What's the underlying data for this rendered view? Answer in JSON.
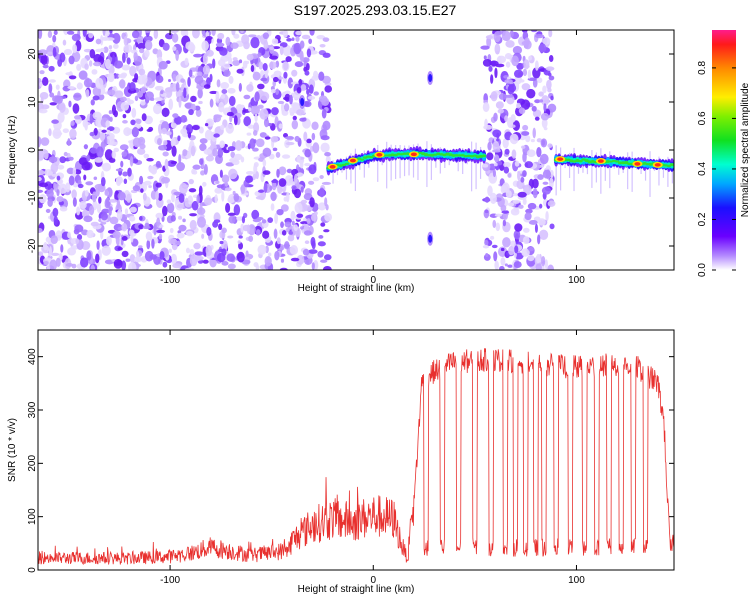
{
  "title": "S197.2025.293.03.15.E27",
  "chart_data": [
    {
      "type": "heatmap",
      "xlabel": "Height of straight line (km)",
      "ylabel": "Frequency (Hz)",
      "xlim": [
        -165,
        148
      ],
      "ylim": [
        -25,
        25
      ],
      "xticks": [
        -100,
        0,
        100
      ],
      "yticks": [
        20,
        10,
        0,
        -10,
        -20
      ],
      "colorbar": {
        "label": "Normalized spectral amplitude",
        "range": [
          0,
          0.95
        ],
        "ticks": [
          "0.0",
          "0.2",
          "0.4",
          "0.6",
          "0.8"
        ]
      },
      "noise_regions_km": [
        [
          -165,
          -28
        ],
        [
          -26,
          -22
        ],
        [
          55,
          88
        ]
      ],
      "signal_track": {
        "segments": [
          {
            "x": [
              -22,
              0,
              20,
              55
            ],
            "freq_hz": [
              -3.8,
              -1.2,
              -0.8,
              -1.3
            ]
          },
          {
            "x": [
              90,
              110,
              130,
              148
            ],
            "freq_hz": [
              -2.0,
              -2.3,
              -2.8,
              -3.3
            ]
          }
        ],
        "peaks": [
          {
            "x": -20,
            "freq_hz": -3.5
          },
          {
            "x": -10,
            "freq_hz": -2.2
          },
          {
            "x": 3,
            "freq_hz": -1.0
          },
          {
            "x": 20,
            "freq_hz": -0.9
          },
          {
            "x": 92,
            "freq_hz": -1.9
          },
          {
            "x": 112,
            "freq_hz": -2.3
          },
          {
            "x": 130,
            "freq_hz": -2.9
          },
          {
            "x": 140,
            "freq_hz": -3.1
          }
        ]
      },
      "isolated_blobs": [
        {
          "x": -35,
          "freq_hz": 10.0
        },
        {
          "x": 28,
          "freq_hz": 15.0
        },
        {
          "x": 28,
          "freq_hz": -18.5
        }
      ]
    },
    {
      "type": "line",
      "xlabel": "Height of straight line (km)",
      "ylabel": "SNR (10 * v/v)",
      "xlim": [
        -165,
        148
      ],
      "ylim": [
        0,
        450
      ],
      "xticks": [
        -100,
        0,
        100
      ],
      "yticks": [
        0,
        100,
        200,
        300,
        400
      ],
      "line_color": "#e8302e",
      "series": [
        {
          "name": "SNR",
          "x": [
            -165,
            -120,
            -100,
            -90,
            -80,
            -60,
            -42,
            -40,
            -30,
            -20,
            -10,
            0,
            10,
            15,
            17,
            20,
            24,
            40,
            60,
            80,
            100,
            120,
            130,
            140,
            143,
            146,
            148
          ],
          "baseline": [
            18,
            17,
            20,
            25,
            35,
            22,
            30,
            45,
            70,
            80,
            75,
            85,
            80,
            30,
            18,
            120,
            360,
            390,
            395,
            385,
            380,
            385,
            380,
            350,
            280,
            40,
            45
          ],
          "dip_centers_km": [
            26,
            34,
            42,
            50,
            58,
            65,
            70,
            75,
            80,
            84,
            90,
            97,
            104,
            110,
            116,
            122,
            128,
            134
          ]
        }
      ]
    }
  ]
}
